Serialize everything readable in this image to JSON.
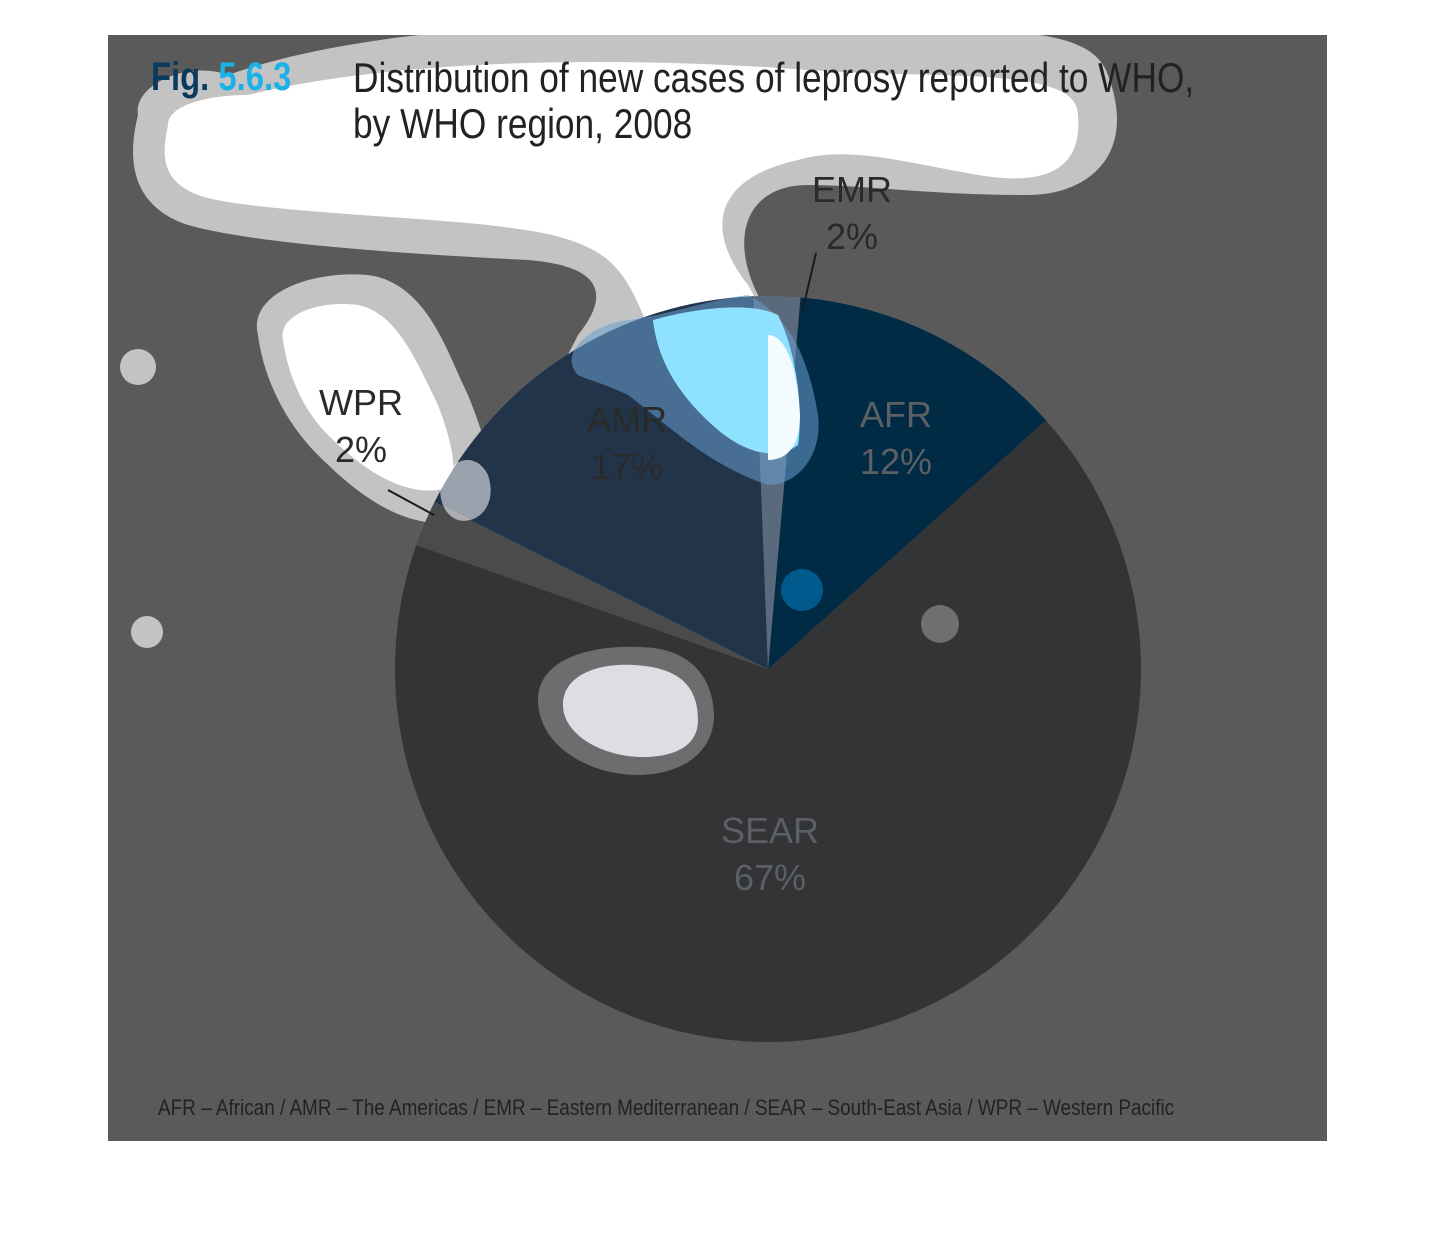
{
  "figure": {
    "label_word": "Fig.",
    "label_number": "5.6.3",
    "title_line1": "Distribution of new cases of leprosy reported to WHO,",
    "title_line2": "by WHO region, 2008"
  },
  "footnote": "AFR – African / AMR – The Americas / EMR – Eastern Mediterranean / SEAR – South-East Asia / WPR – Western Pacific",
  "chart_data": {
    "type": "pie",
    "title": "Distribution of new cases of leprosy reported to WHO, by WHO region, 2008",
    "start_angle_deg": 5,
    "direction": "clockwise",
    "slices": [
      {
        "id": "afr",
        "label": "AFR",
        "percent_label": "12%",
        "value": 12,
        "color": "#012b45",
        "label_color": "#5c5f63"
      },
      {
        "id": "sear",
        "label": "SEAR",
        "percent_label": "67%",
        "value": 67,
        "color": "#333436",
        "label_color": "#5c5f63"
      },
      {
        "id": "wpr",
        "label": "WPR",
        "percent_label": "2%",
        "value": 2,
        "color": "#4a4b4c",
        "label_color": "#2a2a2a"
      },
      {
        "id": "amr",
        "label": "AMR",
        "percent_label": "17%",
        "value": 17,
        "color": "#213449",
        "label_color": "#2a2a2a"
      },
      {
        "id": "emr",
        "label": "EMR",
        "percent_label": "2%",
        "value": 2,
        "color": "#596a7d",
        "label_color": "#2a2a2a"
      }
    ]
  }
}
